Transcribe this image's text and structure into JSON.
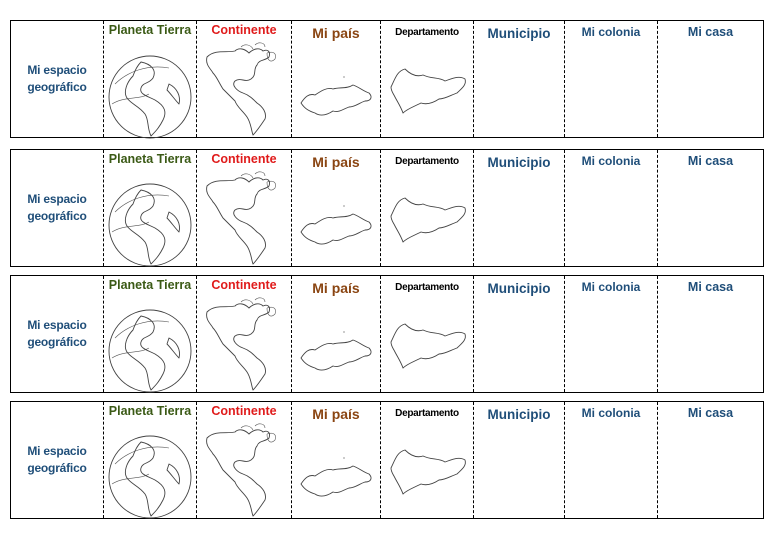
{
  "sheet": {
    "rows": [
      {
        "row_label": "Mi espacio geográfico"
      },
      {
        "row_label": "Mi espacio geográfico"
      },
      {
        "row_label": "Mi espacio geográfico"
      },
      {
        "row_label": "Mi espacio geográfico"
      }
    ],
    "columns": {
      "planeta": "Planeta Tierra",
      "continente": "Continente",
      "pais": "Mi país",
      "departamento": "Departamento",
      "municipio": "Municipio",
      "colonia": "Mi colonia",
      "casa": "Mi casa"
    },
    "colors": {
      "planeta": "#3b5a16",
      "continente": "#e01b1b",
      "pais": "#8a4512",
      "departamento": "#000000",
      "blue_labels": "#1f4e79"
    },
    "icons": [
      "earth-globe-icon",
      "americas-map-icon",
      "honduras-map-icon",
      "department-map-icon"
    ]
  }
}
